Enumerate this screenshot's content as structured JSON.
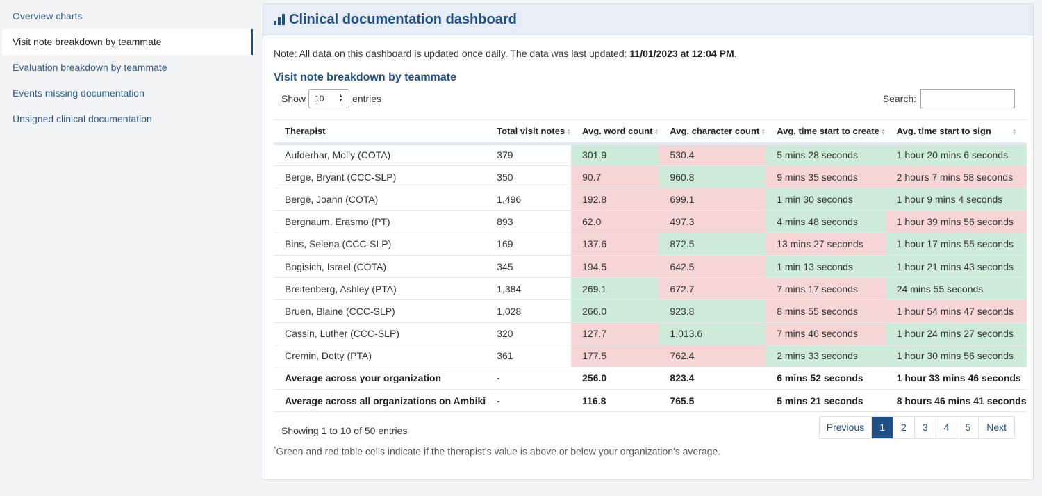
{
  "sidebar": {
    "items": [
      {
        "label": "Overview charts"
      },
      {
        "label": "Visit note breakdown by teammate"
      },
      {
        "label": "Evaluation breakdown by teammate"
      },
      {
        "label": "Events missing documentation"
      },
      {
        "label": "Unsigned clinical documentation"
      }
    ]
  },
  "header": {
    "title": "Clinical documentation dashboard",
    "icon": "bar-chart-icon"
  },
  "note": {
    "prefix": "Note: All data on this dashboard is updated once daily. The data was last updated: ",
    "date": "11/01/2023 at 12:04 PM",
    "suffix": "."
  },
  "section_title": "Visit note breakdown by teammate",
  "length": {
    "show": "Show",
    "value": "10",
    "entries": "entries"
  },
  "search": {
    "label": "Search:",
    "value": ""
  },
  "table": {
    "columns": [
      "Therapist",
      "Total visit notes",
      "Avg. word count",
      "Avg. character count",
      "Avg. time start to create",
      "Avg. time start to sign"
    ],
    "rows": [
      {
        "therapist": "Aufderhar, Molly (COTA)",
        "total": "379",
        "words": "301.9",
        "chars": "530.4",
        "create": "5 mins 28 seconds",
        "sign": "1 hour 20 mins 6 seconds",
        "status": [
          "g",
          "r",
          "g",
          "g"
        ]
      },
      {
        "therapist": "Berge, Bryant (CCC-SLP)",
        "total": "350",
        "words": "90.7",
        "chars": "960.8",
        "create": "9 mins 35 seconds",
        "sign": "2 hours 7 mins 58 seconds",
        "status": [
          "r",
          "g",
          "r",
          "r"
        ]
      },
      {
        "therapist": "Berge, Joann (COTA)",
        "total": "1,496",
        "words": "192.8",
        "chars": "699.1",
        "create": "1 min 30 seconds",
        "sign": "1 hour 9 mins 4 seconds",
        "status": [
          "r",
          "r",
          "g",
          "g"
        ]
      },
      {
        "therapist": "Bergnaum, Erasmo (PT)",
        "total": "893",
        "words": "62.0",
        "chars": "497.3",
        "create": "4 mins 48 seconds",
        "sign": "1 hour 39 mins 56 seconds",
        "status": [
          "r",
          "r",
          "g",
          "r"
        ]
      },
      {
        "therapist": "Bins, Selena (CCC-SLP)",
        "total": "169",
        "words": "137.6",
        "chars": "872.5",
        "create": "13 mins 27 seconds",
        "sign": "1 hour 17 mins 55 seconds",
        "status": [
          "r",
          "g",
          "r",
          "g"
        ]
      },
      {
        "therapist": "Bogisich, Israel (COTA)",
        "total": "345",
        "words": "194.5",
        "chars": "642.5",
        "create": "1 min 13 seconds",
        "sign": "1 hour 21 mins 43 seconds",
        "status": [
          "r",
          "r",
          "g",
          "g"
        ]
      },
      {
        "therapist": "Breitenberg, Ashley (PTA)",
        "total": "1,384",
        "words": "269.1",
        "chars": "672.7",
        "create": "7 mins 17 seconds",
        "sign": "24 mins 55 seconds",
        "status": [
          "g",
          "r",
          "r",
          "g"
        ]
      },
      {
        "therapist": "Bruen, Blaine (CCC-SLP)",
        "total": "1,028",
        "words": "266.0",
        "chars": "923.8",
        "create": "8 mins 55 seconds",
        "sign": "1 hour 54 mins 47 seconds",
        "status": [
          "g",
          "g",
          "r",
          "r"
        ]
      },
      {
        "therapist": "Cassin, Luther (CCC-SLP)",
        "total": "320",
        "words": "127.7",
        "chars": "1,013.6",
        "create": "7 mins 46 seconds",
        "sign": "1 hour 24 mins 27 seconds",
        "status": [
          "r",
          "g",
          "r",
          "g"
        ]
      },
      {
        "therapist": "Cremin, Dotty (PTA)",
        "total": "361",
        "words": "177.5",
        "chars": "762.4",
        "create": "2 mins 33 seconds",
        "sign": "1 hour 30 mins 56 seconds",
        "status": [
          "r",
          "r",
          "g",
          "g"
        ]
      }
    ],
    "averages": [
      {
        "label": "Average across your organization",
        "total": "-",
        "words": "256.0",
        "chars": "823.4",
        "create": "6 mins 52 seconds",
        "sign": "1 hour 33 mins 46 seconds"
      },
      {
        "label": "Average across all organizations on Ambiki",
        "total": "-",
        "words": "116.8",
        "chars": "765.5",
        "create": "5 mins 21 seconds",
        "sign": "8 hours 46 mins 41 seconds"
      }
    ],
    "colors": {
      "above": "#cdebd8",
      "below": "#f6d5d5"
    }
  },
  "info": "Showing 1 to 10 of 50 entries",
  "pagination": {
    "previous": "Previous",
    "pages": [
      "1",
      "2",
      "3",
      "4",
      "5"
    ],
    "current": "1",
    "next": "Next"
  },
  "footnote": {
    "mark": "*",
    "text": "Green and red table cells indicate if the therapist's value is above or below your organization's average."
  },
  "accent": "#1f4f84"
}
